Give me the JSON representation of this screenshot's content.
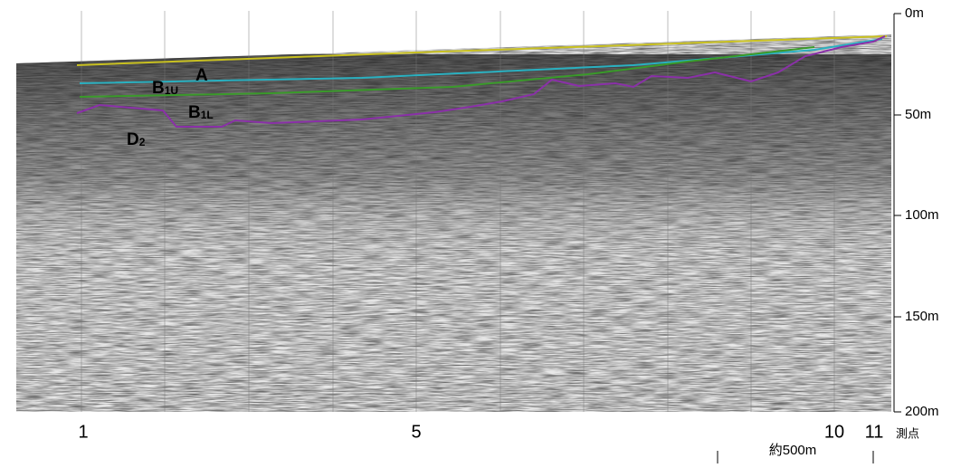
{
  "depth_axis": {
    "ticks": [
      "0m",
      "50m",
      "100m",
      "150m",
      "200m"
    ]
  },
  "stations": {
    "labels": [
      "1",
      "5",
      "10",
      "11"
    ],
    "title": "測点"
  },
  "layers": [
    {
      "main": "A"
    },
    {
      "main": "B",
      "sub": "1U"
    },
    {
      "main": "B",
      "sub": "1L"
    },
    {
      "main": "D",
      "sub": "2"
    }
  ],
  "scale_bar": {
    "label": "約500m"
  }
}
